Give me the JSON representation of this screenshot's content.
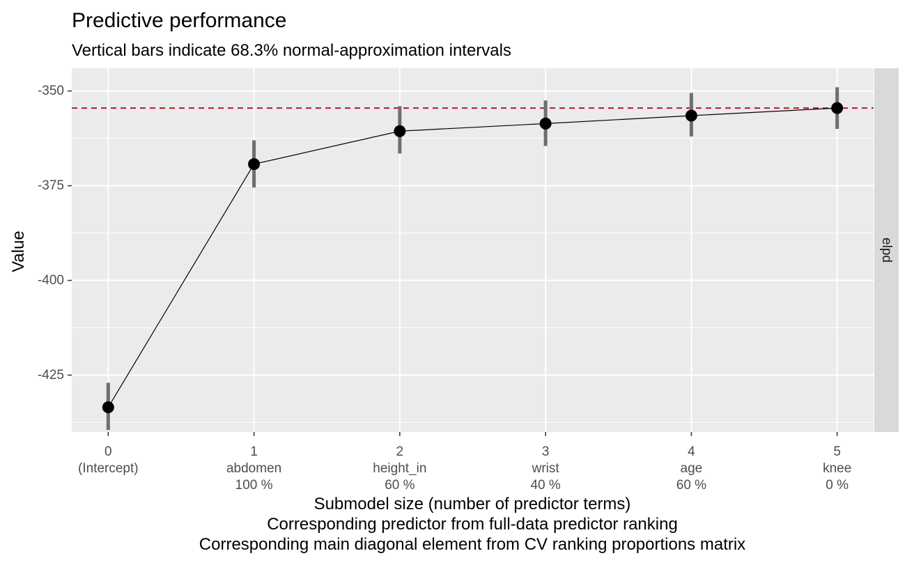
{
  "chart_data": {
    "type": "line",
    "title": "Predictive performance",
    "subtitle": "Vertical bars indicate 68.3% normal-approximation intervals",
    "ylabel": "Value",
    "xlabel_lines": [
      "Submodel size (number of predictor terms)",
      "Corresponding predictor from full-data predictor ranking",
      "Corresponding main diagonal element from CV ranking proportions matrix"
    ],
    "facet_label": "elpd",
    "ylim": [
      -440,
      -344
    ],
    "y_ticks": [
      -350,
      -375,
      -400,
      -425
    ],
    "y_tick_labels": [
      "-350",
      "-375",
      "-400",
      "-425"
    ],
    "x": [
      0,
      1,
      2,
      3,
      4,
      5
    ],
    "x_tick_labels": [
      [
        "0",
        "(Intercept)",
        ""
      ],
      [
        "1",
        "abdomen",
        "100 %"
      ],
      [
        "2",
        "height_in",
        "60 %"
      ],
      [
        "3",
        "wrist",
        "40 %"
      ],
      [
        "4",
        "age",
        "60 %"
      ],
      [
        "5",
        "knee",
        "0 %"
      ]
    ],
    "values": [
      -433.5,
      -369.3,
      -360.6,
      -358.6,
      -356.5,
      -354.5
    ],
    "lower": [
      -439.5,
      -375.5,
      -366.5,
      -364.5,
      -362.0,
      -360.0
    ],
    "upper": [
      -427.0,
      -363.0,
      -354.0,
      -352.5,
      -350.5,
      -349.0
    ],
    "reference_line": -354.5,
    "colors": {
      "panel": "#ebebeb",
      "grid": "#ffffff",
      "strip": "#d9d9d9",
      "reference_line": "#b2182b",
      "errorbar": "#6e6e6e",
      "point": "#000000"
    },
    "grid": true
  }
}
